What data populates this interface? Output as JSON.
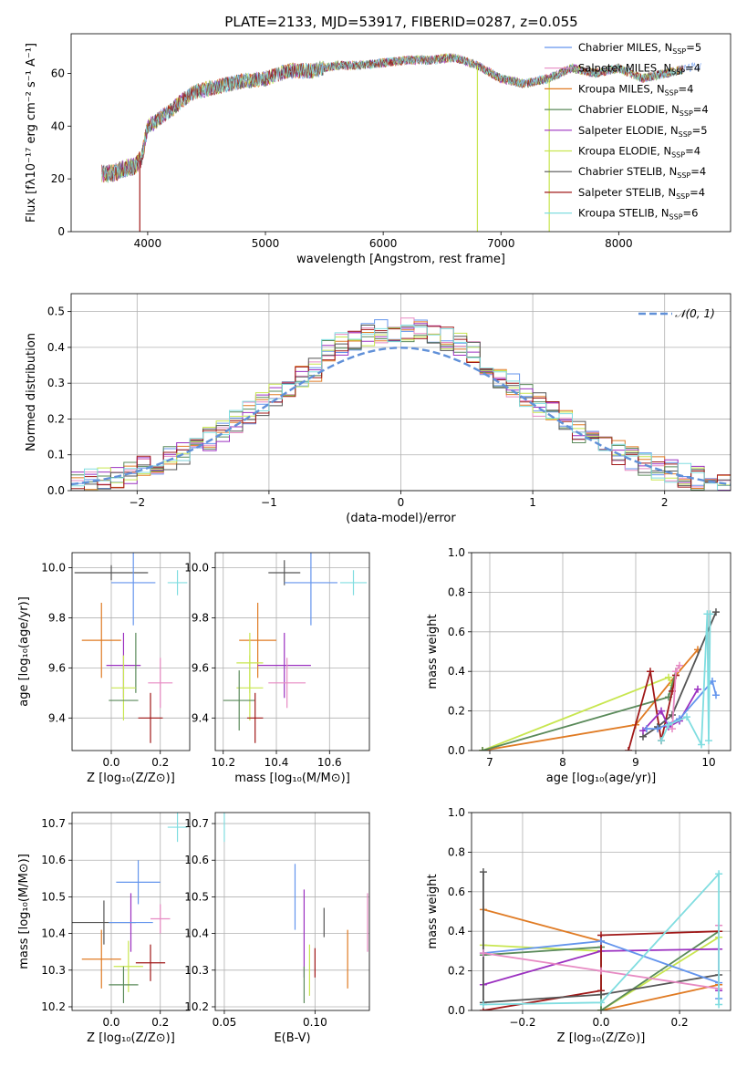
{
  "figure_title": "PLATE=2133, MJD=53917, FIBERID=0287, z=0.055",
  "colors": {
    "chab_miles": "#6495ed",
    "salp_miles": "#e78ac3",
    "krou_miles": "#e07b24",
    "chab_elodie": "#5a8a5a",
    "salp_elodie": "#9b30c0",
    "krou_elodie": "#c8e650",
    "chab_stelib": "#555555",
    "salp_stelib": "#a01818",
    "krou_stelib": "#80dde0"
  },
  "models": [
    {
      "key": "chab_miles",
      "label": "Chabrier MILES, N",
      "sub": "SSP",
      "eq": "=5"
    },
    {
      "key": "salp_miles",
      "label": "Salpeter MILES, N",
      "sub": "SSP",
      "eq": "=4"
    },
    {
      "key": "krou_miles",
      "label": "Kroupa MILES, N",
      "sub": "SSP",
      "eq": "=4"
    },
    {
      "key": "chab_elodie",
      "label": "Chabrier ELODIE, N",
      "sub": "SSP",
      "eq": "=4"
    },
    {
      "key": "salp_elodie",
      "label": "Salpeter ELODIE, N",
      "sub": "SSP",
      "eq": "=5"
    },
    {
      "key": "krou_elodie",
      "label": "Kroupa ELODIE, N",
      "sub": "SSP",
      "eq": "=4"
    },
    {
      "key": "chab_stelib",
      "label": "Chabrier STELIB, N",
      "sub": "SSP",
      "eq": "=4"
    },
    {
      "key": "salp_stelib",
      "label": "Salpeter STELIB, N",
      "sub": "SSP",
      "eq": "=4"
    },
    {
      "key": "krou_stelib",
      "label": "Kroupa STELIB, N",
      "sub": "SSP",
      "eq": "=6"
    }
  ],
  "chart_data": [
    {
      "id": "spectrum",
      "type": "line",
      "xlabel": "wavelength [Angstrom, rest frame]",
      "ylabel": "Flux [fλ10⁻¹⁷ erg cm⁻² s⁻¹ A⁻¹]",
      "xlim": [
        3350,
        8950
      ],
      "ylim": [
        0,
        75
      ],
      "xticks": [
        4000,
        5000,
        6000,
        7000,
        8000
      ],
      "yticks": [
        0,
        20,
        40,
        60
      ],
      "continuum": {
        "x": [
          3600,
          3700,
          3800,
          3900,
          3950,
          4000,
          4050,
          4100,
          4200,
          4300,
          4400,
          4500,
          4600,
          4800,
          5000,
          5200,
          5400,
          5600,
          5800,
          6000,
          6200,
          6400,
          6600,
          6800,
          7000,
          7200,
          7400,
          7600,
          7800,
          8000,
          8200,
          8400,
          8700
        ],
        "y": [
          22,
          22,
          24,
          25,
          28,
          40,
          41,
          43,
          46,
          50,
          53,
          54,
          55,
          57,
          58,
          61,
          61,
          63,
          63,
          64,
          65,
          65,
          66,
          63,
          58,
          56,
          58,
          62,
          60,
          62,
          58,
          60,
          63
        ]
      },
      "dips": [
        {
          "x": 3933,
          "y": 0
        },
        {
          "x": 6800,
          "y": 0
        },
        {
          "x": 7410,
          "y": 0
        }
      ]
    },
    {
      "id": "residuals",
      "type": "step",
      "xlabel": "(data-model)/error",
      "ylabel": "Normed distribution",
      "xlim": [
        -2.5,
        2.5
      ],
      "ylim": [
        0,
        0.55
      ],
      "xticks": [
        -2,
        -1,
        0,
        1,
        2
      ],
      "xtick_labels": [
        "−2",
        "−1",
        "0",
        "1",
        "2"
      ],
      "yticks": [
        0.0,
        0.1,
        0.2,
        0.3,
        0.4,
        0.5
      ],
      "ytick_labels": [
        "0.0",
        "0.1",
        "0.2",
        "0.3",
        "0.4",
        "0.5"
      ],
      "bin_width": 0.1,
      "bin_start": -2.5,
      "legend": "𝒩(0, 1)"
    },
    {
      "id": "age_vs_Z",
      "type": "errorbar",
      "xlabel": "Z [log₁₀(Z/Z⊙)]",
      "ylabel": "age  [log₁₀(age/yr)]",
      "xlim": [
        -0.16,
        0.32
      ],
      "ylim": [
        9.27,
        10.06
      ],
      "xticks": [
        0.0,
        0.2
      ],
      "xtick_labels": [
        "0.0",
        "0.2"
      ],
      "yticks": [
        9.4,
        9.6,
        9.8,
        10.0
      ],
      "ytick_labels": [
        "9.4",
        "9.6",
        "9.8",
        "10.0"
      ],
      "points": [
        {
          "key": "chab_stelib",
          "x": 0.0,
          "xerr": 0.15,
          "y": 9.98,
          "yerr": 0.03
        },
        {
          "key": "chab_miles",
          "x": 0.09,
          "xerr": 0.09,
          "y": 9.94,
          "yerr": 0.17
        },
        {
          "key": "krou_stelib",
          "x": 0.27,
          "xerr": 0.04,
          "y": 9.94,
          "yerr": 0.05
        },
        {
          "key": "krou_miles",
          "x": -0.04,
          "xerr": 0.08,
          "y": 9.71,
          "yerr": 0.15
        },
        {
          "key": "salp_elodie",
          "x": 0.05,
          "xerr": 0.07,
          "y": 9.61,
          "yerr": 0.13
        },
        {
          "key": "chab_elodie",
          "x": 0.1,
          "xerr": 0.0,
          "y": 9.62,
          "yerr": 0.12
        },
        {
          "key": "salp_miles",
          "x": 0.2,
          "xerr": 0.05,
          "y": 9.54,
          "yerr": 0.1
        },
        {
          "key": "krou_elodie",
          "x": 0.05,
          "xerr": 0.05,
          "y": 9.52,
          "yerr": 0.13
        },
        {
          "key": "chab_elodie",
          "x": 0.05,
          "xerr": 0.06,
          "y": 9.47,
          "yerr": 0.0
        },
        {
          "key": "salp_stelib",
          "x": 0.16,
          "xerr": 0.05,
          "y": 9.4,
          "yerr": 0.1
        }
      ]
    },
    {
      "id": "age_vs_mass",
      "type": "errorbar",
      "xlabel": "mass [log₁₀(M/M⊙)]",
      "ylabel": "",
      "xlim": [
        10.17,
        10.75
      ],
      "ylim": [
        9.27,
        10.06
      ],
      "xticks": [
        10.2,
        10.4,
        10.6
      ],
      "xtick_labels": [
        "10.2",
        "10.4",
        "10.6"
      ],
      "yticks": [
        9.4,
        9.6,
        9.8,
        10.0
      ],
      "ytick_labels": [
        "9.4",
        "9.6",
        "9.8",
        "10.0"
      ],
      "points": [
        {
          "key": "chab_stelib",
          "x": 10.43,
          "xerr": 0.06,
          "y": 9.98,
          "yerr": 0.05
        },
        {
          "key": "chab_miles",
          "x": 10.53,
          "xerr": 0.1,
          "y": 9.94,
          "yerr": 0.17
        },
        {
          "key": "krou_stelib",
          "x": 10.69,
          "xerr": 0.05,
          "y": 9.94,
          "yerr": 0.05
        },
        {
          "key": "krou_miles",
          "x": 10.33,
          "xerr": 0.07,
          "y": 9.71,
          "yerr": 0.15
        },
        {
          "key": "salp_elodie",
          "x": 10.43,
          "xerr": 0.1,
          "y": 9.61,
          "yerr": 0.13
        },
        {
          "key": "krou_elodie",
          "x": 10.3,
          "xerr": 0.05,
          "y": 9.62,
          "yerr": 0.12
        },
        {
          "key": "salp_miles",
          "x": 10.44,
          "xerr": 0.07,
          "y": 9.54,
          "yerr": 0.1
        },
        {
          "key": "krou_elodie",
          "x": 10.3,
          "xerr": 0.05,
          "y": 9.52,
          "yerr": 0.13
        },
        {
          "key": "chab_elodie",
          "x": 10.26,
          "xerr": 0.06,
          "y": 9.47,
          "yerr": 0.12
        },
        {
          "key": "salp_stelib",
          "x": 10.32,
          "xerr": 0.03,
          "y": 9.4,
          "yerr": 0.1
        }
      ]
    },
    {
      "id": "weight_vs_age",
      "type": "line",
      "xlabel": "age  [log₁₀(age/yr)]",
      "ylabel": "mass weight",
      "xlim": [
        6.75,
        10.3
      ],
      "ylim": [
        0,
        1
      ],
      "xticks": [
        7,
        8,
        9,
        10
      ],
      "xtick_labels": [
        "7",
        "8",
        "9",
        "10"
      ],
      "yticks": [
        0.0,
        0.2,
        0.4,
        0.6,
        0.8,
        1.0
      ],
      "ytick_labels": [
        "0.0",
        "0.2",
        "0.4",
        "0.6",
        "0.8",
        "1.0"
      ],
      "series": [
        {
          "key": "krou_miles",
          "x": [
            6.9,
            9.0,
            9.55,
            9.85
          ],
          "y": [
            0.0,
            0.13,
            0.38,
            0.51
          ]
        },
        {
          "key": "krou_elodie",
          "x": [
            6.9,
            9.45,
            9.5
          ],
          "y": [
            0.0,
            0.37,
            0.33
          ]
        },
        {
          "key": "chab_elodie",
          "x": [
            6.9,
            9.45,
            9.55
          ],
          "y": [
            0.0,
            0.27,
            0.4
          ]
        },
        {
          "key": "salp_stelib",
          "x": [
            8.9,
            9.2,
            9.35,
            9.5,
            9.55
          ],
          "y": [
            0.0,
            0.4,
            0.05,
            0.3,
            0.38
          ]
        },
        {
          "key": "chab_stelib",
          "x": [
            9.1,
            9.3,
            9.5,
            10.1
          ],
          "y": [
            0.07,
            0.12,
            0.18,
            0.7
          ]
        },
        {
          "key": "salp_elodie",
          "x": [
            9.1,
            9.35,
            9.45,
            9.6,
            9.85
          ],
          "y": [
            0.1,
            0.2,
            0.12,
            0.15,
            0.31
          ]
        },
        {
          "key": "chab_miles",
          "x": [
            9.15,
            9.3,
            9.6,
            10.05,
            10.1
          ],
          "y": [
            0.11,
            0.11,
            0.16,
            0.35,
            0.28
          ]
        },
        {
          "key": "salp_miles",
          "x": [
            9.5,
            9.55,
            9.6
          ],
          "y": [
            0.11,
            0.4,
            0.43
          ]
        },
        {
          "key": "krou_stelib",
          "x": [
            9.35,
            9.45,
            9.7,
            9.9,
            9.98,
            10.0,
            10.02
          ],
          "y": [
            0.05,
            0.13,
            0.17,
            0.03,
            0.69,
            0.05,
            0.69
          ]
        }
      ]
    },
    {
      "id": "mass_vs_Z",
      "type": "errorbar",
      "xlabel": "Z [log₁₀(Z/Z⊙)]",
      "ylabel": "mass [log₁₀(M/M⊙)]",
      "xlim": [
        -0.16,
        0.32
      ],
      "ylim": [
        10.19,
        10.73
      ],
      "xticks": [
        0.0,
        0.2
      ],
      "xtick_labels": [
        "0.0",
        "0.2"
      ],
      "yticks": [
        10.2,
        10.3,
        10.4,
        10.5,
        10.6,
        10.7
      ],
      "ytick_labels": [
        "10.2",
        "10.3",
        "10.4",
        "10.5",
        "10.6",
        "10.7"
      ],
      "points": [
        {
          "key": "krou_stelib",
          "x": 0.27,
          "xerr": 0.04,
          "y": 10.69,
          "yerr": 0.04
        },
        {
          "key": "chab_miles",
          "x": 0.11,
          "xerr": 0.09,
          "y": 10.54,
          "yerr": 0.06
        },
        {
          "key": "salp_miles",
          "x": 0.2,
          "xerr": 0.04,
          "y": 10.44,
          "yerr": 0.04
        },
        {
          "key": "chab_stelib",
          "x": -0.03,
          "xerr": 0.13,
          "y": 10.43,
          "yerr": 0.06
        },
        {
          "key": "salp_elodie",
          "x": 0.08,
          "xerr": 0.0,
          "y": 10.43,
          "yerr": 0.08
        },
        {
          "key": "chab_miles",
          "x": 0.08,
          "xerr": 0.09,
          "y": 10.43,
          "yerr": 0.0
        },
        {
          "key": "krou_miles",
          "x": -0.04,
          "xerr": 0.08,
          "y": 10.33,
          "yerr": 0.08
        },
        {
          "key": "salp_stelib",
          "x": 0.16,
          "xerr": 0.06,
          "y": 10.32,
          "yerr": 0.05
        },
        {
          "key": "krou_elodie",
          "x": 0.07,
          "xerr": 0.06,
          "y": 10.31,
          "yerr": 0.07
        },
        {
          "key": "chab_elodie",
          "x": 0.05,
          "xerr": 0.06,
          "y": 10.26,
          "yerr": 0.05
        }
      ]
    },
    {
      "id": "mass_vs_ebv",
      "type": "errorbar",
      "xlabel": "E(B-V)",
      "ylabel": "",
      "xlim": [
        0.045,
        0.13
      ],
      "ylim": [
        10.19,
        10.73
      ],
      "xticks": [
        0.05,
        0.1
      ],
      "xtick_labels": [
        "0.05",
        "0.10"
      ],
      "yticks": [
        10.2,
        10.3,
        10.4,
        10.5,
        10.6,
        10.7
      ],
      "ytick_labels": [
        "10.2",
        "10.3",
        "10.4",
        "10.5",
        "10.6",
        "10.7"
      ],
      "points": [
        {
          "key": "krou_stelib",
          "x": 0.05,
          "xerr": 0.0,
          "y": 10.69,
          "yerr": 0.04
        },
        {
          "key": "chab_miles",
          "x": 0.089,
          "xerr": 0.0,
          "y": 10.5,
          "yerr": 0.09
        },
        {
          "key": "salp_miles",
          "x": 0.129,
          "xerr": 0.0,
          "y": 10.43,
          "yerr": 0.08
        },
        {
          "key": "salp_elodie",
          "x": 0.094,
          "xerr": 0.0,
          "y": 10.4,
          "yerr": 0.12
        },
        {
          "key": "chab_stelib",
          "x": 0.105,
          "xerr": 0.0,
          "y": 10.43,
          "yerr": 0.04
        },
        {
          "key": "krou_miles",
          "x": 0.118,
          "xerr": 0.0,
          "y": 10.33,
          "yerr": 0.08
        },
        {
          "key": "salp_stelib",
          "x": 0.1,
          "xerr": 0.0,
          "y": 10.32,
          "yerr": 0.04
        },
        {
          "key": "krou_elodie",
          "x": 0.097,
          "xerr": 0.0,
          "y": 10.3,
          "yerr": 0.07
        },
        {
          "key": "chab_elodie",
          "x": 0.094,
          "xerr": 0.0,
          "y": 10.26,
          "yerr": 0.05
        }
      ]
    },
    {
      "id": "weight_vs_Z",
      "type": "line",
      "xlabel": "Z [log₁₀(Z/Z⊙)]",
      "ylabel": "mass weight",
      "xlim": [
        -0.33,
        0.33
      ],
      "ylim": [
        0,
        1
      ],
      "xticks": [
        -0.2,
        0.0,
        0.2
      ],
      "xtick_labels": [
        "−0.2",
        "0.0",
        "0.2"
      ],
      "yticks": [
        0.0,
        0.2,
        0.4,
        0.6,
        0.8,
        1.0
      ],
      "ytick_labels": [
        "0.0",
        "0.2",
        "0.4",
        "0.6",
        "0.8",
        "1.0"
      ],
      "series": [
        {
          "key": "krou_miles",
          "x": [
            -0.3,
            0.0,
            0.0,
            0.3
          ],
          "y": [
            0.51,
            0.35,
            0.0,
            0.13
          ]
        },
        {
          "key": "krou_elodie",
          "x": [
            -0.3,
            0.0,
            0.0,
            0.3
          ],
          "y": [
            0.33,
            0.3,
            0.0,
            0.37
          ]
        },
        {
          "key": "chab_elodie",
          "x": [
            -0.3,
            0.0,
            0.0,
            0.3
          ],
          "y": [
            0.28,
            0.32,
            0.0,
            0.4
          ]
        },
        {
          "key": "salp_elodie",
          "x": [
            -0.3,
            0.0,
            0.3,
            0.3
          ],
          "y": [
            0.13,
            0.3,
            0.31,
            0.1
          ]
        },
        {
          "key": "salp_stelib",
          "x": [
            -0.3,
            0.0,
            0.0,
            0.3
          ],
          "y": [
            0.0,
            0.1,
            0.38,
            0.4
          ]
        },
        {
          "key": "chab_stelib",
          "x": [
            -0.3,
            -0.3,
            0.0,
            0.3
          ],
          "y": [
            0.7,
            0.04,
            0.08,
            0.18
          ]
        },
        {
          "key": "chab_miles",
          "x": [
            -0.3,
            0.0,
            0.3,
            0.3
          ],
          "y": [
            0.29,
            0.35,
            0.14,
            0.06
          ]
        },
        {
          "key": "salp_miles",
          "x": [
            -0.3,
            0.0,
            0.3,
            0.3
          ],
          "y": [
            0.29,
            0.2,
            0.11,
            0.43
          ]
        },
        {
          "key": "krou_stelib",
          "x": [
            -0.3,
            0.0,
            0.3,
            0.3
          ],
          "y": [
            0.03,
            0.04,
            0.69,
            0.03
          ]
        }
      ]
    }
  ]
}
